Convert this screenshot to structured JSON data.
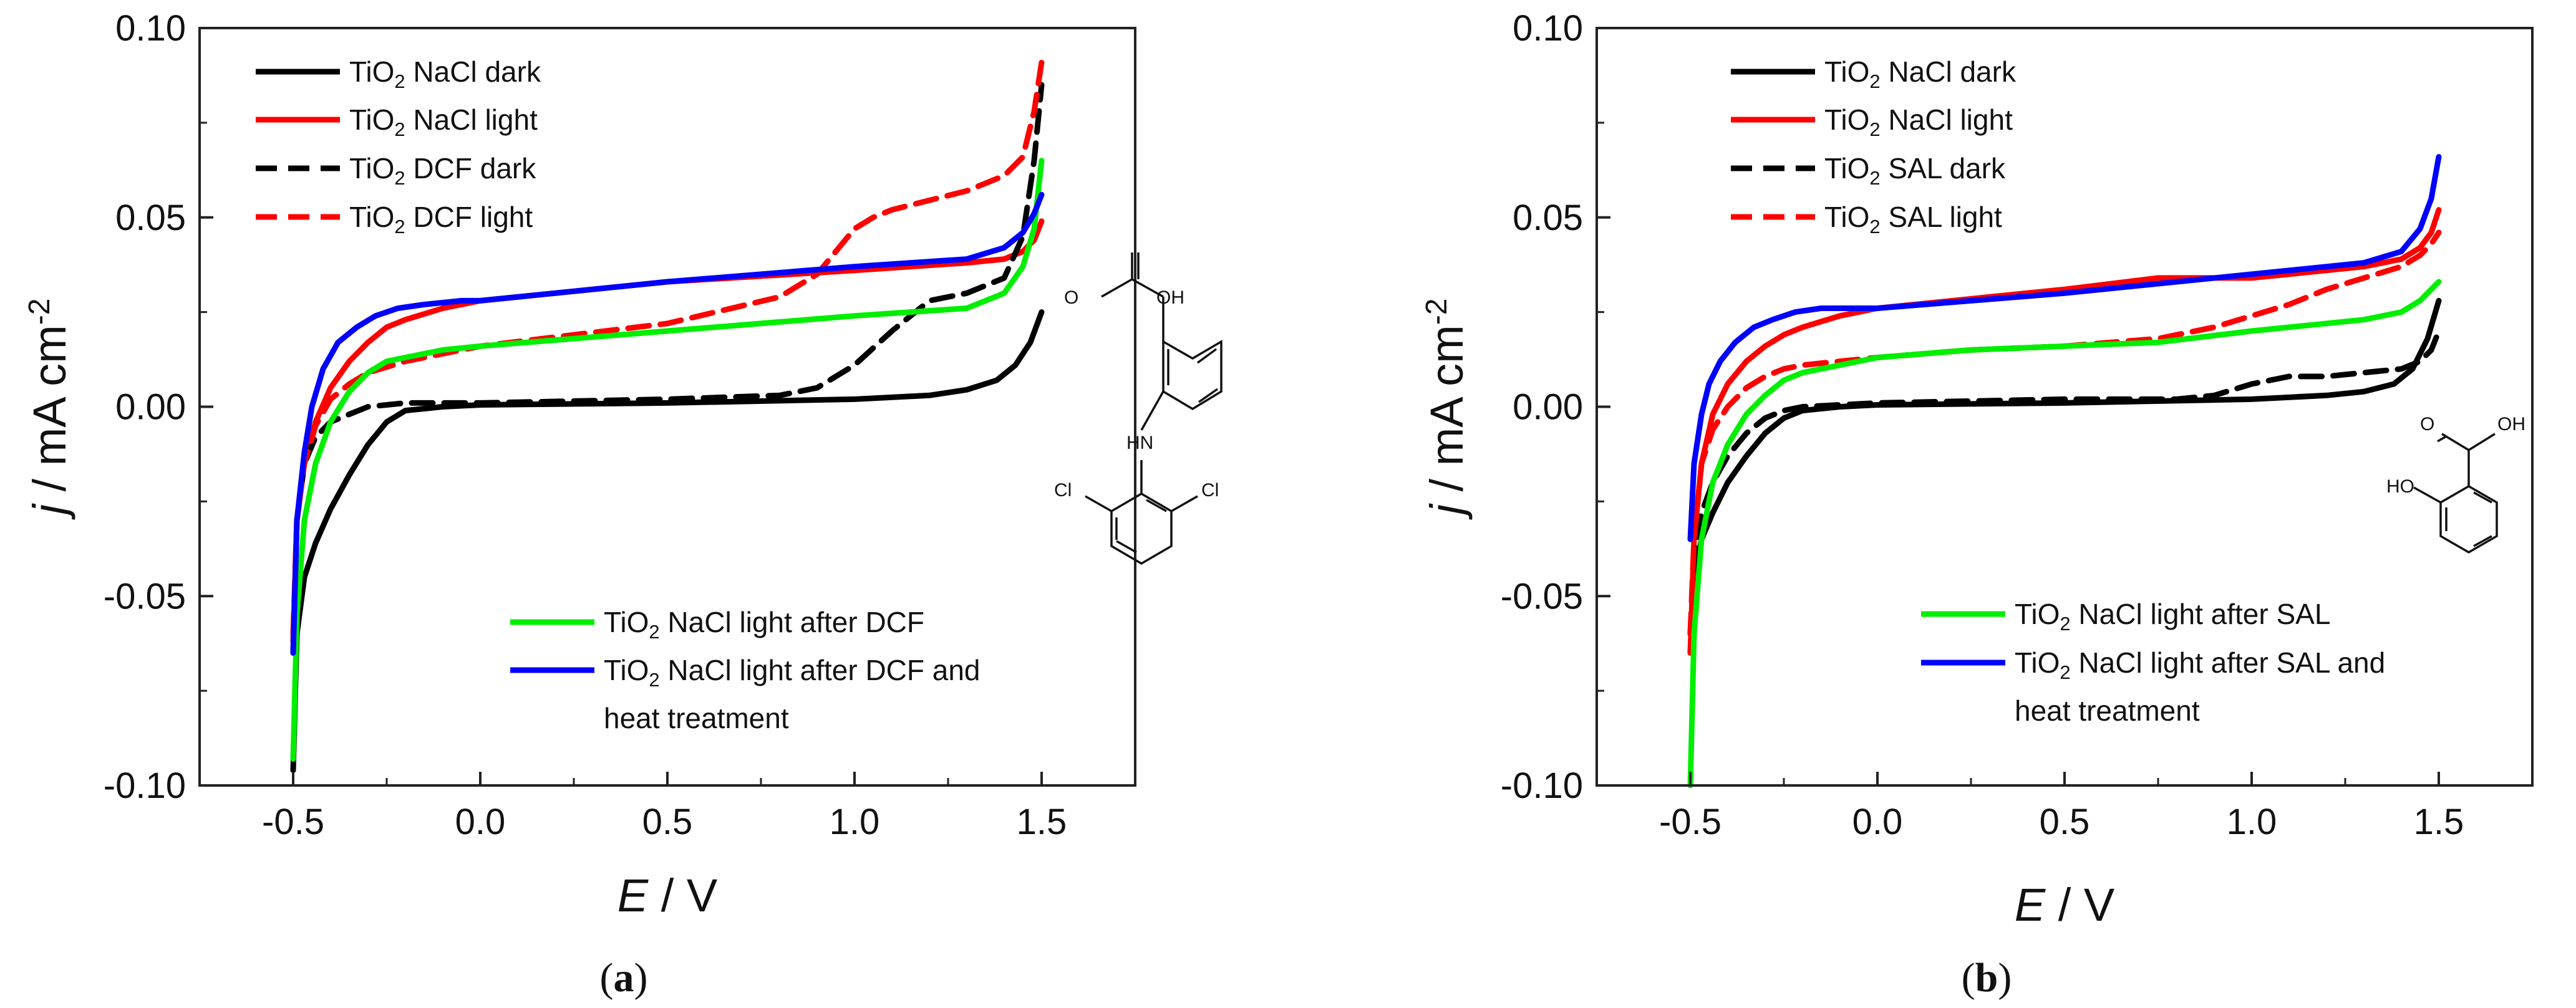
{
  "chart_data": [
    {
      "type": "line",
      "panel_label": [
        "(",
        "a",
        ")"
      ],
      "xlabel": [
        "E",
        " / V"
      ],
      "ylabel": [
        "j",
        " / mA cm",
        "-2"
      ],
      "xlim": [
        -0.75,
        1.75
      ],
      "ylim": [
        -0.1,
        0.1
      ],
      "xticks": [
        "-0.5",
        "0.0",
        "0.5",
        "1.0",
        "1.5"
      ],
      "xtick_values": [
        -0.5,
        0.0,
        0.5,
        1.0,
        1.5
      ],
      "yticks": [
        "-0.10",
        "-0.05",
        "0.00",
        "0.05",
        "0.10"
      ],
      "ytick_values": [
        -0.1,
        -0.05,
        0.0,
        0.05,
        0.1
      ],
      "molecule": {
        "atoms": [
          "O",
          "OH",
          "HN",
          "Cl",
          "Cl"
        ]
      },
      "series": [
        {
          "name": [
            "TiO",
            "2",
            " NaCl dark"
          ],
          "color": "#000000",
          "dash": "solid",
          "x": [
            -0.5,
            -0.49,
            -0.47,
            -0.44,
            -0.4,
            -0.35,
            -0.3,
            -0.25,
            -0.2,
            -0.1,
            0.0,
            0.5,
            1.0,
            1.2,
            1.3,
            1.38,
            1.43,
            1.47,
            1.5
          ],
          "y": [
            -0.096,
            -0.06,
            -0.045,
            -0.036,
            -0.027,
            -0.018,
            -0.01,
            -0.004,
            -0.001,
            0.0,
            0.0005,
            0.001,
            0.002,
            0.003,
            0.0045,
            0.007,
            0.011,
            0.017,
            0.025
          ]
        },
        {
          "name": [
            "TiO",
            "2",
            " NaCl light"
          ],
          "color": "#ff0000",
          "dash": "solid",
          "x": [
            -0.5,
            -0.49,
            -0.47,
            -0.44,
            -0.4,
            -0.35,
            -0.3,
            -0.25,
            -0.2,
            -0.1,
            0.0,
            0.5,
            1.0,
            1.3,
            1.4,
            1.45,
            1.48,
            1.5
          ],
          "y": [
            -0.062,
            -0.03,
            -0.015,
            -0.004,
            0.005,
            0.012,
            0.017,
            0.021,
            0.023,
            0.026,
            0.028,
            0.033,
            0.036,
            0.038,
            0.039,
            0.041,
            0.044,
            0.049
          ]
        },
        {
          "name": [
            "TiO",
            "2",
            " DCF dark"
          ],
          "color": "#000000",
          "dash": "dashed",
          "x": [
            -0.5,
            -0.49,
            -0.47,
            -0.44,
            -0.4,
            -0.35,
            -0.3,
            -0.25,
            -0.2,
            -0.1,
            0.0,
            0.5,
            0.8,
            0.9,
            1.0,
            1.1,
            1.2,
            1.3,
            1.4,
            1.45,
            1.48,
            1.5
          ],
          "y": [
            -0.065,
            -0.03,
            -0.015,
            -0.008,
            -0.004,
            -0.002,
            0.0,
            0.0005,
            0.001,
            0.001,
            0.001,
            0.002,
            0.003,
            0.005,
            0.011,
            0.02,
            0.028,
            0.03,
            0.034,
            0.045,
            0.065,
            0.085
          ]
        },
        {
          "name": [
            "TiO",
            "2",
            " DCF light"
          ],
          "color": "#ff0000",
          "dash": "dashed",
          "x": [
            -0.5,
            -0.49,
            -0.47,
            -0.44,
            -0.4,
            -0.35,
            -0.3,
            -0.2,
            -0.1,
            0.0,
            0.5,
            0.8,
            0.9,
            1.0,
            1.05,
            1.1,
            1.3,
            1.4,
            1.45,
            1.48,
            1.5
          ],
          "y": [
            -0.06,
            -0.03,
            -0.015,
            -0.005,
            0.002,
            0.006,
            0.009,
            0.012,
            0.014,
            0.016,
            0.022,
            0.029,
            0.035,
            0.047,
            0.05,
            0.052,
            0.057,
            0.061,
            0.066,
            0.078,
            0.091
          ]
        },
        {
          "name": [
            "TiO",
            "2",
            " NaCl light after DCF"
          ],
          "color": "#00ee00",
          "dash": "solid",
          "x": [
            -0.5,
            -0.49,
            -0.47,
            -0.44,
            -0.4,
            -0.35,
            -0.3,
            -0.25,
            -0.2,
            -0.1,
            0.0,
            0.25,
            0.5,
            0.75,
            1.0,
            1.3,
            1.4,
            1.45,
            1.48,
            1.5
          ],
          "y": [
            -0.093,
            -0.055,
            -0.03,
            -0.015,
            -0.004,
            0.004,
            0.009,
            0.012,
            0.013,
            0.015,
            0.016,
            0.018,
            0.02,
            0.022,
            0.024,
            0.026,
            0.03,
            0.037,
            0.047,
            0.065
          ]
        },
        {
          "name": [
            "TiO",
            "2",
            " NaCl light after DCF and",
            "heat treatment"
          ],
          "color": "#0000ff",
          "dash": "solid",
          "x": [
            -0.5,
            -0.49,
            -0.47,
            -0.45,
            -0.42,
            -0.38,
            -0.33,
            -0.28,
            -0.22,
            -0.15,
            -0.05,
            0.0,
            0.5,
            1.0,
            1.3,
            1.4,
            1.45,
            1.48,
            1.5
          ],
          "y": [
            -0.065,
            -0.03,
            -0.012,
            0.0,
            0.01,
            0.017,
            0.021,
            0.024,
            0.026,
            0.027,
            0.028,
            0.028,
            0.033,
            0.037,
            0.039,
            0.042,
            0.046,
            0.051,
            0.056
          ]
        }
      ]
    },
    {
      "type": "line",
      "panel_label": [
        "(",
        "b",
        ")"
      ],
      "xlabel": [
        "E",
        " / V"
      ],
      "ylabel": [
        "j",
        " / mA cm",
        "-2"
      ],
      "xlim": [
        -0.75,
        1.75
      ],
      "ylim": [
        -0.1,
        0.1
      ],
      "xticks": [
        "-0.5",
        "0.0",
        "0.5",
        "1.0",
        "1.5"
      ],
      "xtick_values": [
        -0.5,
        0.0,
        0.5,
        1.0,
        1.5
      ],
      "yticks": [
        "-0.10",
        "-0.05",
        "0.00",
        "0.05",
        "0.10"
      ],
      "ytick_values": [
        -0.1,
        -0.05,
        0.0,
        0.05,
        0.1
      ],
      "molecule": {
        "atoms": [
          "O",
          "OH",
          "HO"
        ]
      },
      "series": [
        {
          "name": [
            "TiO",
            "2",
            " NaCl dark"
          ],
          "color": "#000000",
          "dash": "solid",
          "x": [
            -0.5,
            -0.49,
            -0.47,
            -0.44,
            -0.4,
            -0.35,
            -0.3,
            -0.25,
            -0.2,
            -0.1,
            0.0,
            0.5,
            1.0,
            1.2,
            1.3,
            1.38,
            1.43,
            1.47,
            1.5
          ],
          "y": [
            -0.065,
            -0.045,
            -0.035,
            -0.028,
            -0.02,
            -0.013,
            -0.007,
            -0.003,
            -0.001,
            0.0,
            0.0005,
            0.001,
            0.002,
            0.003,
            0.004,
            0.006,
            0.01,
            0.018,
            0.028
          ]
        },
        {
          "name": [
            "TiO",
            "2",
            " NaCl light"
          ],
          "color": "#ff0000",
          "dash": "solid",
          "x": [
            -0.5,
            -0.49,
            -0.47,
            -0.44,
            -0.4,
            -0.35,
            -0.3,
            -0.25,
            -0.2,
            -0.1,
            0.0,
            0.5,
            0.75,
            1.0,
            1.3,
            1.4,
            1.45,
            1.48,
            1.5
          ],
          "y": [
            -0.065,
            -0.035,
            -0.015,
            -0.002,
            0.006,
            0.012,
            0.016,
            0.019,
            0.021,
            0.024,
            0.026,
            0.031,
            0.034,
            0.034,
            0.037,
            0.039,
            0.042,
            0.046,
            0.052
          ]
        },
        {
          "name": [
            "TiO",
            "2",
            " SAL dark"
          ],
          "color": "#000000",
          "dash": "dashed",
          "x": [
            -0.5,
            -0.49,
            -0.47,
            -0.44,
            -0.4,
            -0.35,
            -0.3,
            -0.25,
            -0.2,
            -0.1,
            0.0,
            0.5,
            0.8,
            0.9,
            1.0,
            1.1,
            1.2,
            1.3,
            1.4,
            1.45,
            1.48,
            1.5
          ],
          "y": [
            -0.06,
            -0.04,
            -0.028,
            -0.02,
            -0.013,
            -0.007,
            -0.003,
            -0.001,
            0.0,
            0.0005,
            0.001,
            0.002,
            0.002,
            0.003,
            0.006,
            0.008,
            0.008,
            0.009,
            0.01,
            0.012,
            0.015,
            0.02
          ]
        },
        {
          "name": [
            "TiO",
            "2",
            " SAL light"
          ],
          "color": "#ff0000",
          "dash": "dashed",
          "x": [
            -0.5,
            -0.49,
            -0.47,
            -0.44,
            -0.4,
            -0.35,
            -0.3,
            -0.25,
            -0.2,
            -0.1,
            0.0,
            0.25,
            0.5,
            0.75,
            0.9,
            1.0,
            1.1,
            1.2,
            1.3,
            1.4,
            1.45,
            1.48,
            1.5
          ],
          "y": [
            -0.06,
            -0.035,
            -0.015,
            -0.006,
            0.0,
            0.005,
            0.008,
            0.01,
            0.011,
            0.012,
            0.013,
            0.015,
            0.016,
            0.018,
            0.021,
            0.024,
            0.027,
            0.031,
            0.034,
            0.037,
            0.04,
            0.043,
            0.046
          ]
        },
        {
          "name": [
            "TiO",
            "2",
            " NaCl light after SAL"
          ],
          "color": "#00ee00",
          "dash": "solid",
          "x": [
            -0.5,
            -0.49,
            -0.47,
            -0.44,
            -0.4,
            -0.35,
            -0.3,
            -0.25,
            -0.2,
            -0.1,
            0.0,
            0.25,
            0.5,
            0.75,
            1.0,
            1.3,
            1.4,
            1.45,
            1.48,
            1.5
          ],
          "y": [
            -0.1,
            -0.06,
            -0.035,
            -0.02,
            -0.01,
            -0.002,
            0.003,
            0.007,
            0.009,
            0.011,
            0.013,
            0.015,
            0.016,
            0.017,
            0.02,
            0.023,
            0.025,
            0.028,
            0.031,
            0.033
          ]
        },
        {
          "name": [
            "TiO",
            "2",
            " NaCl light after SAL and",
            "heat treatment"
          ],
          "color": "#0000ff",
          "dash": "solid",
          "x": [
            -0.5,
            -0.49,
            -0.47,
            -0.45,
            -0.42,
            -0.38,
            -0.33,
            -0.28,
            -0.22,
            -0.15,
            -0.05,
            0.0,
            0.5,
            1.0,
            1.3,
            1.4,
            1.45,
            1.48,
            1.5
          ],
          "y": [
            -0.035,
            -0.015,
            -0.002,
            0.006,
            0.012,
            0.017,
            0.021,
            0.023,
            0.025,
            0.026,
            0.026,
            0.026,
            0.03,
            0.035,
            0.038,
            0.041,
            0.047,
            0.055,
            0.066
          ]
        }
      ]
    }
  ]
}
